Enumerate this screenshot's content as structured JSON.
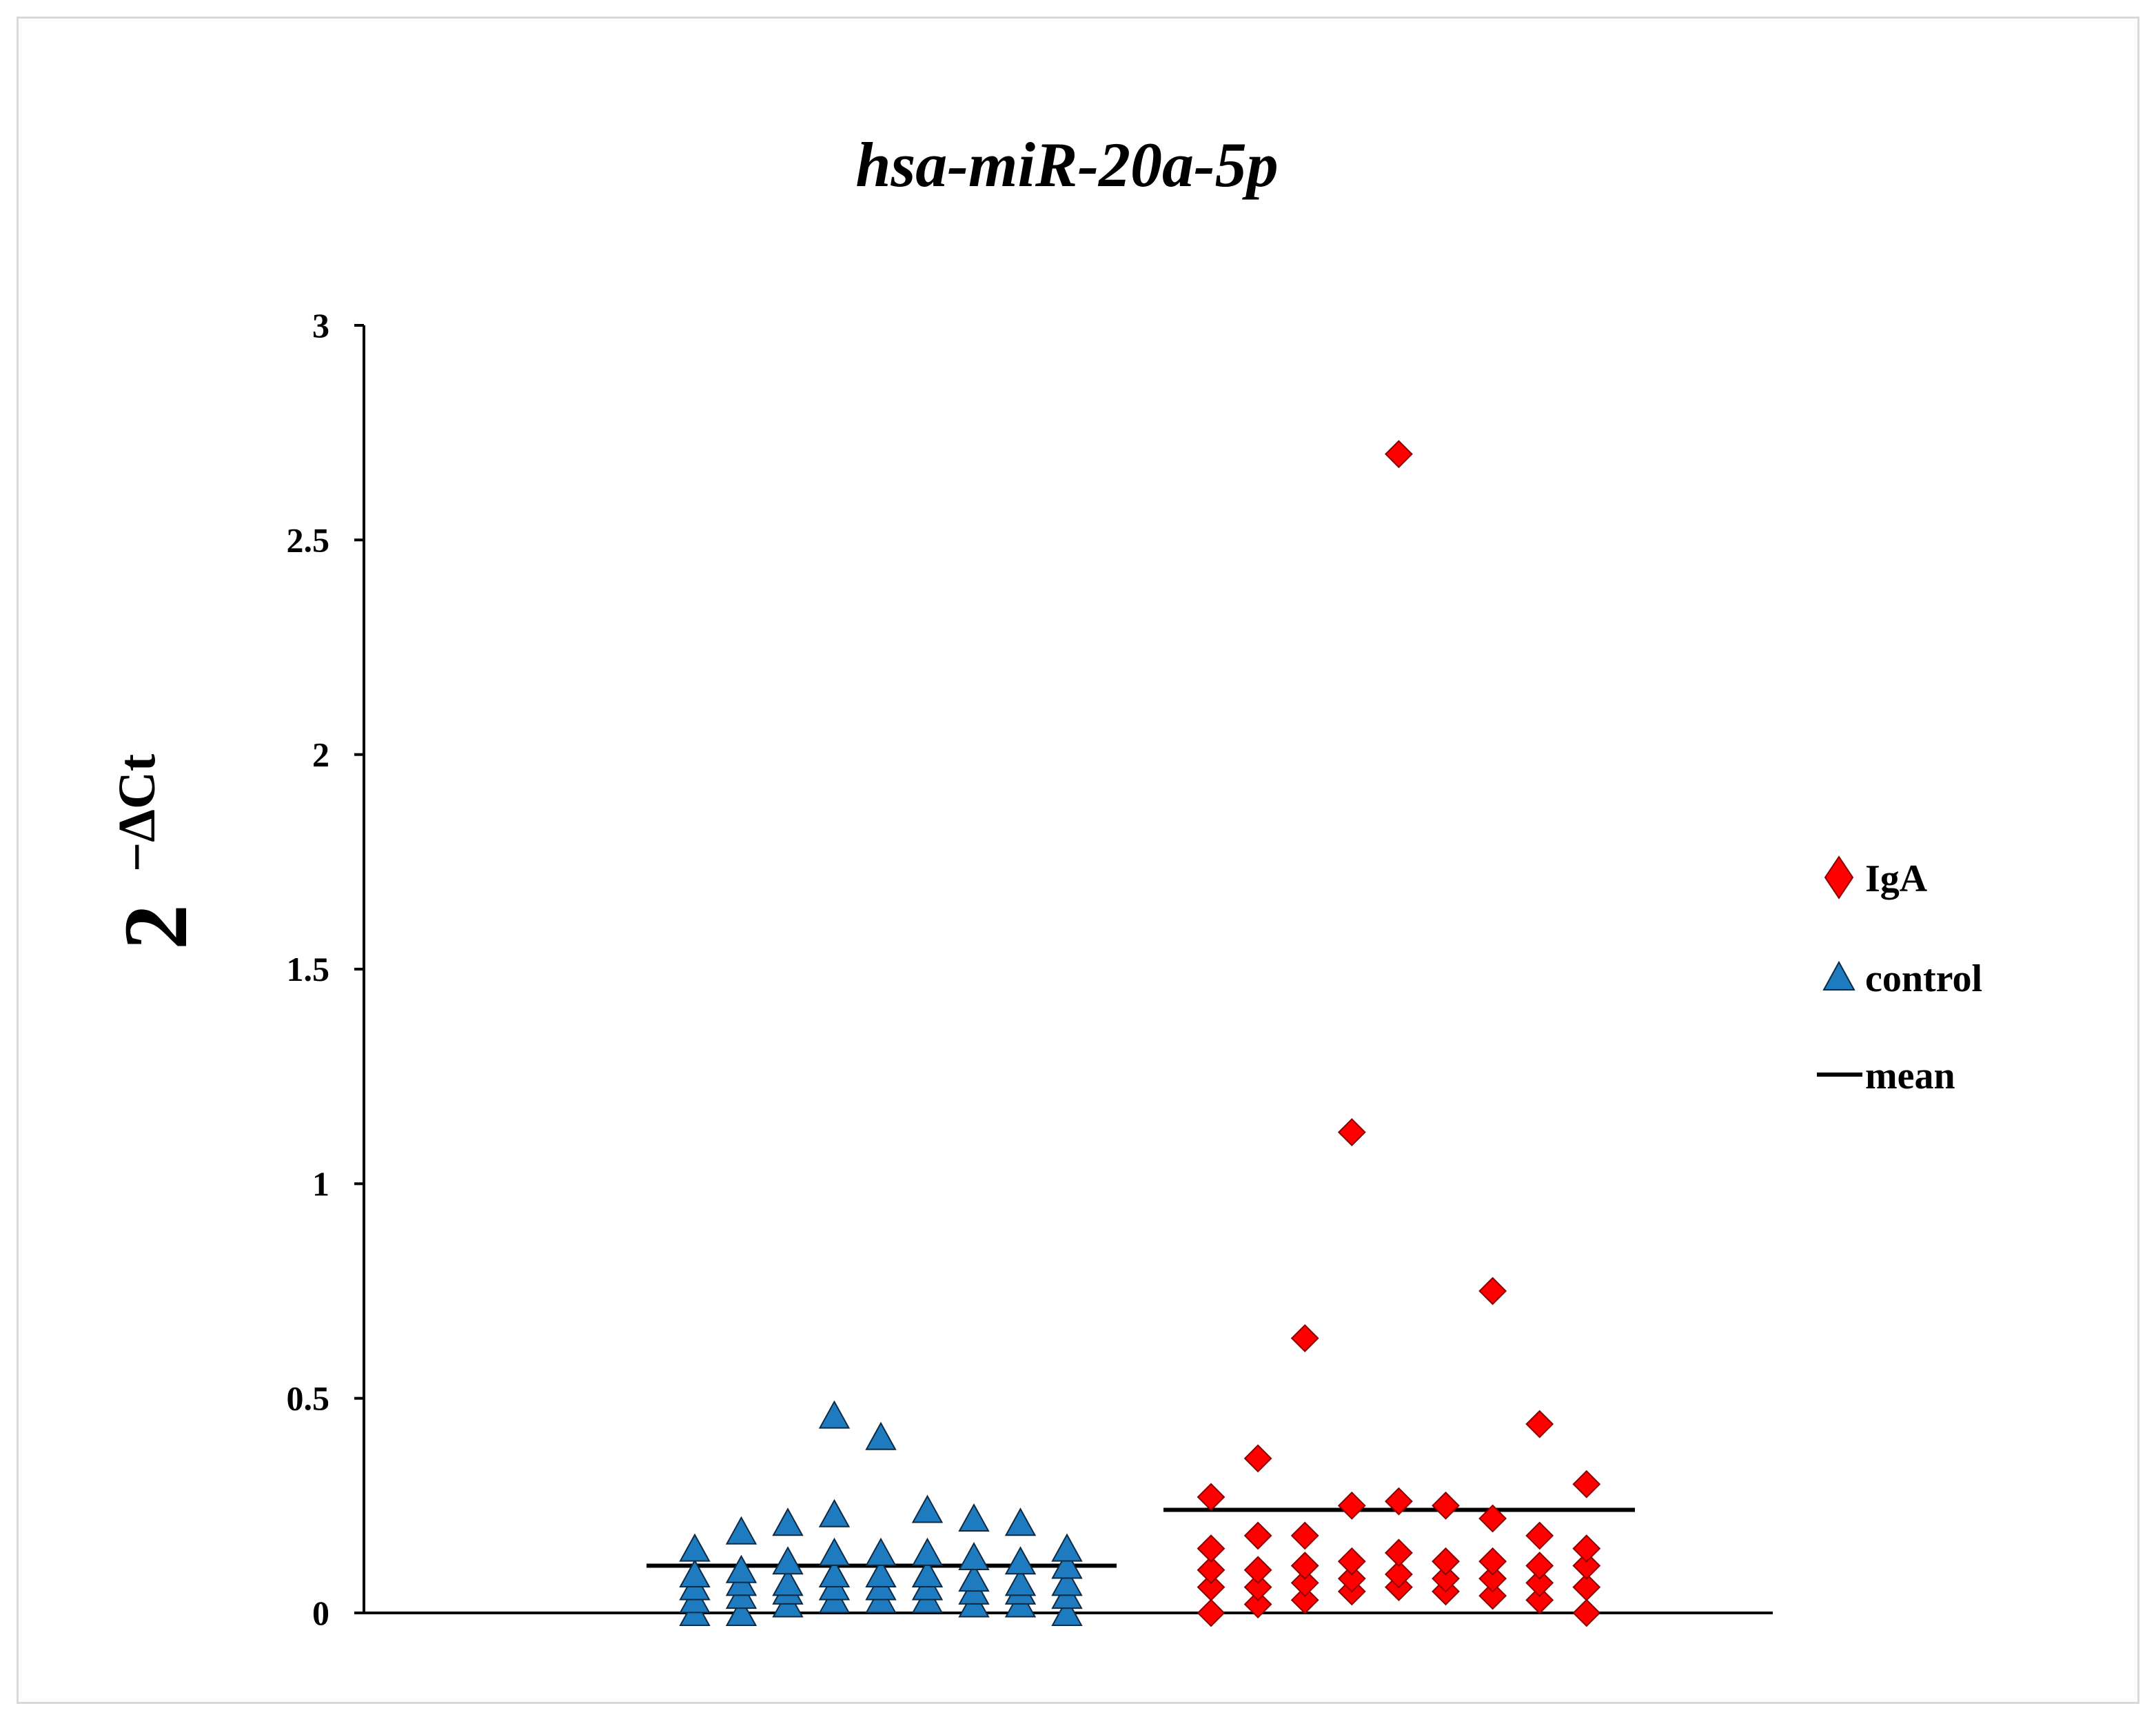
{
  "chart_data": {
    "type": "scatter",
    "title": "hsa-miR-20a-5p",
    "ylabel_base": "2",
    "ylabel_exponent": "−ΔCt",
    "xlabel": "",
    "ylim": [
      0,
      3
    ],
    "y_ticks": [
      {
        "value": 0,
        "label": "0"
      },
      {
        "value": 0.5,
        "label": "0.5"
      },
      {
        "value": 1,
        "label": "1"
      },
      {
        "value": 1.5,
        "label": "1.5"
      },
      {
        "value": 2,
        "label": "2"
      },
      {
        "value": 2.5,
        "label": "2.5"
      },
      {
        "value": 3,
        "label": "3"
      }
    ],
    "legend_position": "right",
    "legend": [
      {
        "name": "IgA",
        "marker": "diamond"
      },
      {
        "name": "control",
        "marker": "triangle"
      },
      {
        "name": "mean",
        "marker": "line"
      }
    ],
    "series": [
      {
        "name": "control",
        "marker": "triangle",
        "color": "#1f7bbf",
        "mean": 0.11,
        "columns": [
          [
            0.0,
            0.03,
            0.06,
            0.09,
            0.15
          ],
          [
            0.0,
            0.04,
            0.07,
            0.1,
            0.19
          ],
          [
            0.02,
            0.05,
            0.07,
            0.12,
            0.21
          ],
          [
            0.03,
            0.06,
            0.09,
            0.14,
            0.23,
            0.46
          ],
          [
            0.03,
            0.06,
            0.09,
            0.14,
            0.41
          ],
          [
            0.03,
            0.06,
            0.09,
            0.14,
            0.24
          ],
          [
            0.02,
            0.05,
            0.08,
            0.13,
            0.22
          ],
          [
            0.02,
            0.05,
            0.07,
            0.12,
            0.21
          ],
          [
            0.0,
            0.04,
            0.07,
            0.11,
            0.15
          ]
        ]
      },
      {
        "name": "IgA",
        "marker": "diamond",
        "color": "#ff0000",
        "mean": 0.24,
        "columns": [
          [
            0.0,
            0.06,
            0.1,
            0.15,
            0.27
          ],
          [
            0.02,
            0.06,
            0.1,
            0.18,
            0.36
          ],
          [
            0.03,
            0.07,
            0.11,
            0.18,
            0.64
          ],
          [
            0.05,
            0.08,
            0.12,
            0.25,
            1.12
          ],
          [
            0.06,
            0.09,
            0.14,
            0.26,
            2.7
          ],
          [
            0.05,
            0.08,
            0.12,
            0.25
          ],
          [
            0.04,
            0.08,
            0.12,
            0.22,
            0.75
          ],
          [
            0.03,
            0.07,
            0.11,
            0.18,
            0.44
          ],
          [
            0.0,
            0.06,
            0.11,
            0.15,
            0.3
          ]
        ]
      }
    ]
  }
}
